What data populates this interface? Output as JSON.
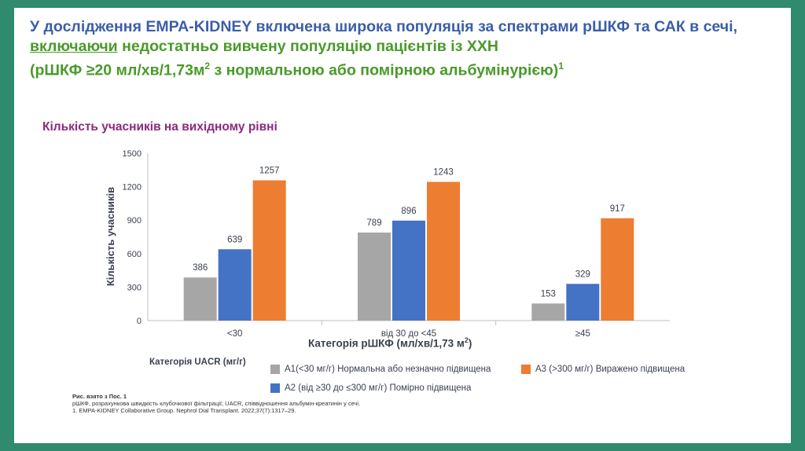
{
  "slide": {
    "title_part1": "У дослідження EMPA-KIDNEY включена широка популяція за спектрами рШКФ та САК в сечі, ",
    "title_underline": "включаючи",
    "title_part2": " недостатньо вивчену популяцію пацієнтів із ХХН",
    "title_line3": "(рШКФ ≥20 мл/хв/1,73м",
    "title_sup2": "2",
    "title_line3b": " з нормальною або помірною альбумінурією)",
    "title_sup1": "1",
    "subtitle": "Кількість учасників на вихідному рівні"
  },
  "chart_data": {
    "type": "bar",
    "categories": [
      "<30",
      "від 30 до <45",
      "≥45"
    ],
    "series": [
      {
        "name": "А1(<30 мг/г) Нормальна або незначно підвищена",
        "color": "#a6a6a6",
        "values": [
          386,
          789,
          153
        ]
      },
      {
        "name": "А2 (від ≥30 до ≤300 мг/г) Помірно підвищена",
        "color": "#4472c4",
        "values": [
          639,
          896,
          329
        ]
      },
      {
        "name": "А3 (>300 мг/г) Виражено підвищена",
        "color": "#ed7d31",
        "values": [
          1257,
          1243,
          917
        ]
      }
    ],
    "ylabel": "Кількість учасників",
    "xlabel": "Категорія рШКФ (мл/хв/1,73 м",
    "xlabel_sup": "2",
    "xlabel_end": ")",
    "ylim": [
      0,
      1500
    ],
    "yticks": [
      0,
      300,
      600,
      900,
      1200,
      1500
    ],
    "legend_title": "Категорія UACR (мг/г)"
  },
  "footnote": {
    "line1": "Рис. взято з Пос. 1",
    "line2": "рШКФ, розрахункова швидкість клубочкової фільтрації; UACR, співвідношення альбумін-креатинін у сечі.",
    "line3": "1. EMPA-KIDNEY Collaborative Group. Nephrol Dial Transplant. 2022;37(7):1317–29."
  }
}
